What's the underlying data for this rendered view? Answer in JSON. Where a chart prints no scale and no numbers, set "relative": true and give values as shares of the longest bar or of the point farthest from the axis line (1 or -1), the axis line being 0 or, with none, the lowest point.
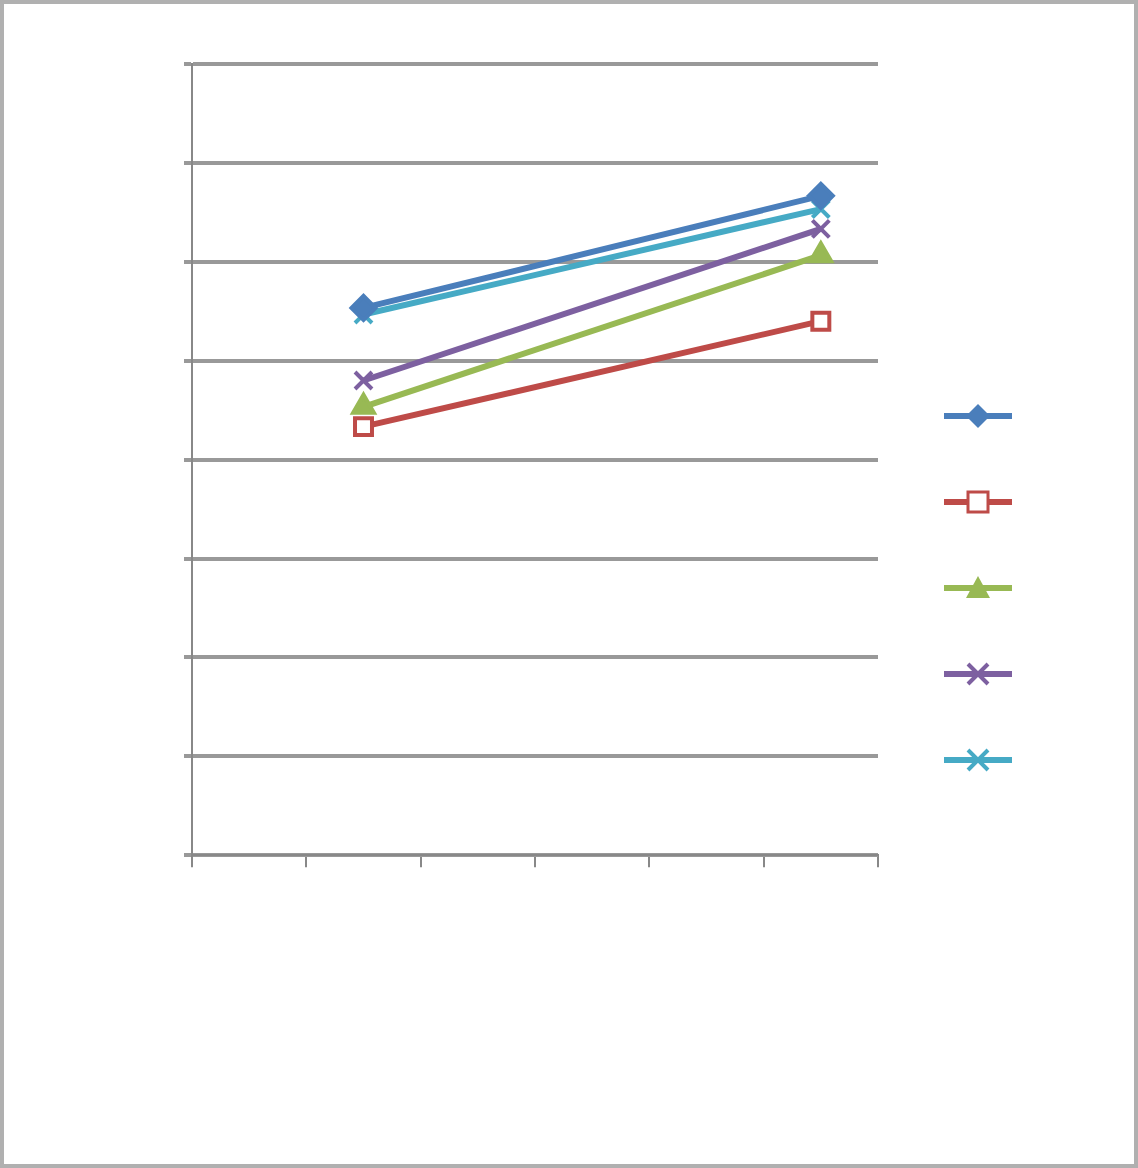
{
  "chart_data": {
    "type": "line",
    "relative": true,
    "categories": [
      null,
      null,
      null,
      null,
      null,
      null
    ],
    "grid": "y",
    "series": [
      {
        "color": "#4a7ebb",
        "marker": "diamond",
        "values": [
          null,
          0.83,
          null,
          null,
          null,
          1
        ]
      },
      {
        "color": "#be4b48",
        "marker": "square",
        "values": [
          null,
          0.65,
          null,
          null,
          null,
          0.81
        ]
      },
      {
        "color": "#98b954",
        "marker": "triangle",
        "values": [
          null,
          0.68,
          null,
          null,
          null,
          0.91
        ]
      },
      {
        "color": "#7d60a0",
        "marker": "cross",
        "values": [
          null,
          0.72,
          null,
          null,
          null,
          0.95
        ]
      },
      {
        "color": "#46aac5",
        "marker": "cross",
        "values": [
          null,
          0.82,
          null,
          null,
          null,
          0.98
        ]
      }
    ]
  }
}
